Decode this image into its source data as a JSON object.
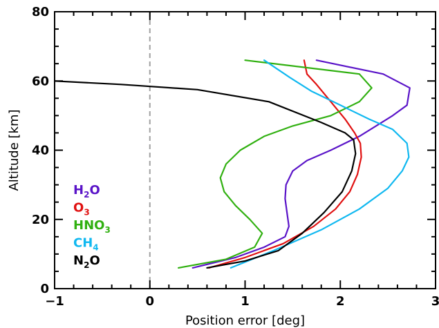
{
  "chart_data": {
    "type": "line",
    "xlabel": "Position error [deg]",
    "ylabel": "Altitude [km]",
    "xlim": [
      -1,
      3
    ],
    "ylim": [
      0,
      80
    ],
    "x_ticks": [
      -1,
      0,
      1,
      2,
      3
    ],
    "y_ticks": [
      0,
      20,
      40,
      60,
      80
    ],
    "x_tick_labels": [
      "−1",
      "0",
      "1",
      "2",
      "3"
    ],
    "y_tick_labels": [
      "0",
      "20",
      "40",
      "60",
      "80"
    ],
    "reference_line": {
      "x": 0,
      "style": "dashed",
      "color": "#a0a0a0"
    },
    "grid": false,
    "legend_position": "left",
    "series": [
      {
        "name": "H2O",
        "legend": {
          "base": "H",
          "sub": "2",
          "tail": "O"
        },
        "color": "#5a14c8",
        "x": [
          0.45,
          0.9,
          1.2,
          1.42,
          1.46,
          1.44,
          1.42,
          1.43,
          1.5,
          1.65,
          1.9,
          2.2,
          2.55,
          2.7,
          2.73,
          2.45,
          1.75
        ],
        "y": [
          6,
          9,
          12,
          15,
          18,
          22,
          26,
          30,
          34,
          37,
          40,
          44,
          50,
          53,
          58,
          62,
          66
        ]
      },
      {
        "name": "O3",
        "legend": {
          "base": "O",
          "sub": "3",
          "tail": ""
        },
        "color": "#e01010",
        "x": [
          0.62,
          1.0,
          1.4,
          1.72,
          1.95,
          2.1,
          2.18,
          2.22,
          2.21,
          2.15,
          2.05,
          1.9,
          1.75,
          1.65,
          1.62
        ],
        "y": [
          6,
          9,
          13,
          18,
          23,
          28,
          33,
          38,
          42,
          45,
          49,
          54,
          59,
          62,
          66
        ]
      },
      {
        "name": "HNO3",
        "legend": {
          "base": "HNO",
          "sub": "3",
          "tail": ""
        },
        "color": "#30b010",
        "x": [
          0.3,
          0.8,
          1.1,
          1.18,
          1.05,
          0.9,
          0.78,
          0.74,
          0.8,
          0.95,
          1.2,
          1.5,
          1.9,
          2.2,
          2.33,
          2.2,
          1.0
        ],
        "y": [
          6,
          8.5,
          12,
          16,
          20,
          24,
          28,
          32,
          36,
          40,
          44,
          47,
          50,
          54,
          58,
          62,
          66
        ]
      },
      {
        "name": "CH4",
        "legend": {
          "base": "CH",
          "sub": "4",
          "tail": ""
        },
        "color": "#10b8f0",
        "x": [
          0.85,
          1.3,
          1.8,
          2.2,
          2.5,
          2.65,
          2.72,
          2.7,
          2.55,
          2.3,
          2.0,
          1.7,
          1.47,
          1.2
        ],
        "y": [
          6,
          11,
          17,
          23,
          29,
          34,
          38,
          42,
          46,
          49,
          53,
          57,
          61,
          66
        ]
      },
      {
        "name": "N2O",
        "legend": {
          "base": "N",
          "sub": "2",
          "tail": "O"
        },
        "color": "#000000",
        "x": [
          0.6,
          1.0,
          1.35,
          1.6,
          1.83,
          2.02,
          2.12,
          2.16,
          2.14,
          2.05,
          1.8,
          1.25,
          0.5,
          -0.3,
          -1.0
        ],
        "y": [
          6,
          8,
          11,
          16,
          22,
          28,
          34,
          39,
          43,
          45,
          48,
          54,
          57.5,
          59,
          60
        ]
      }
    ]
  }
}
